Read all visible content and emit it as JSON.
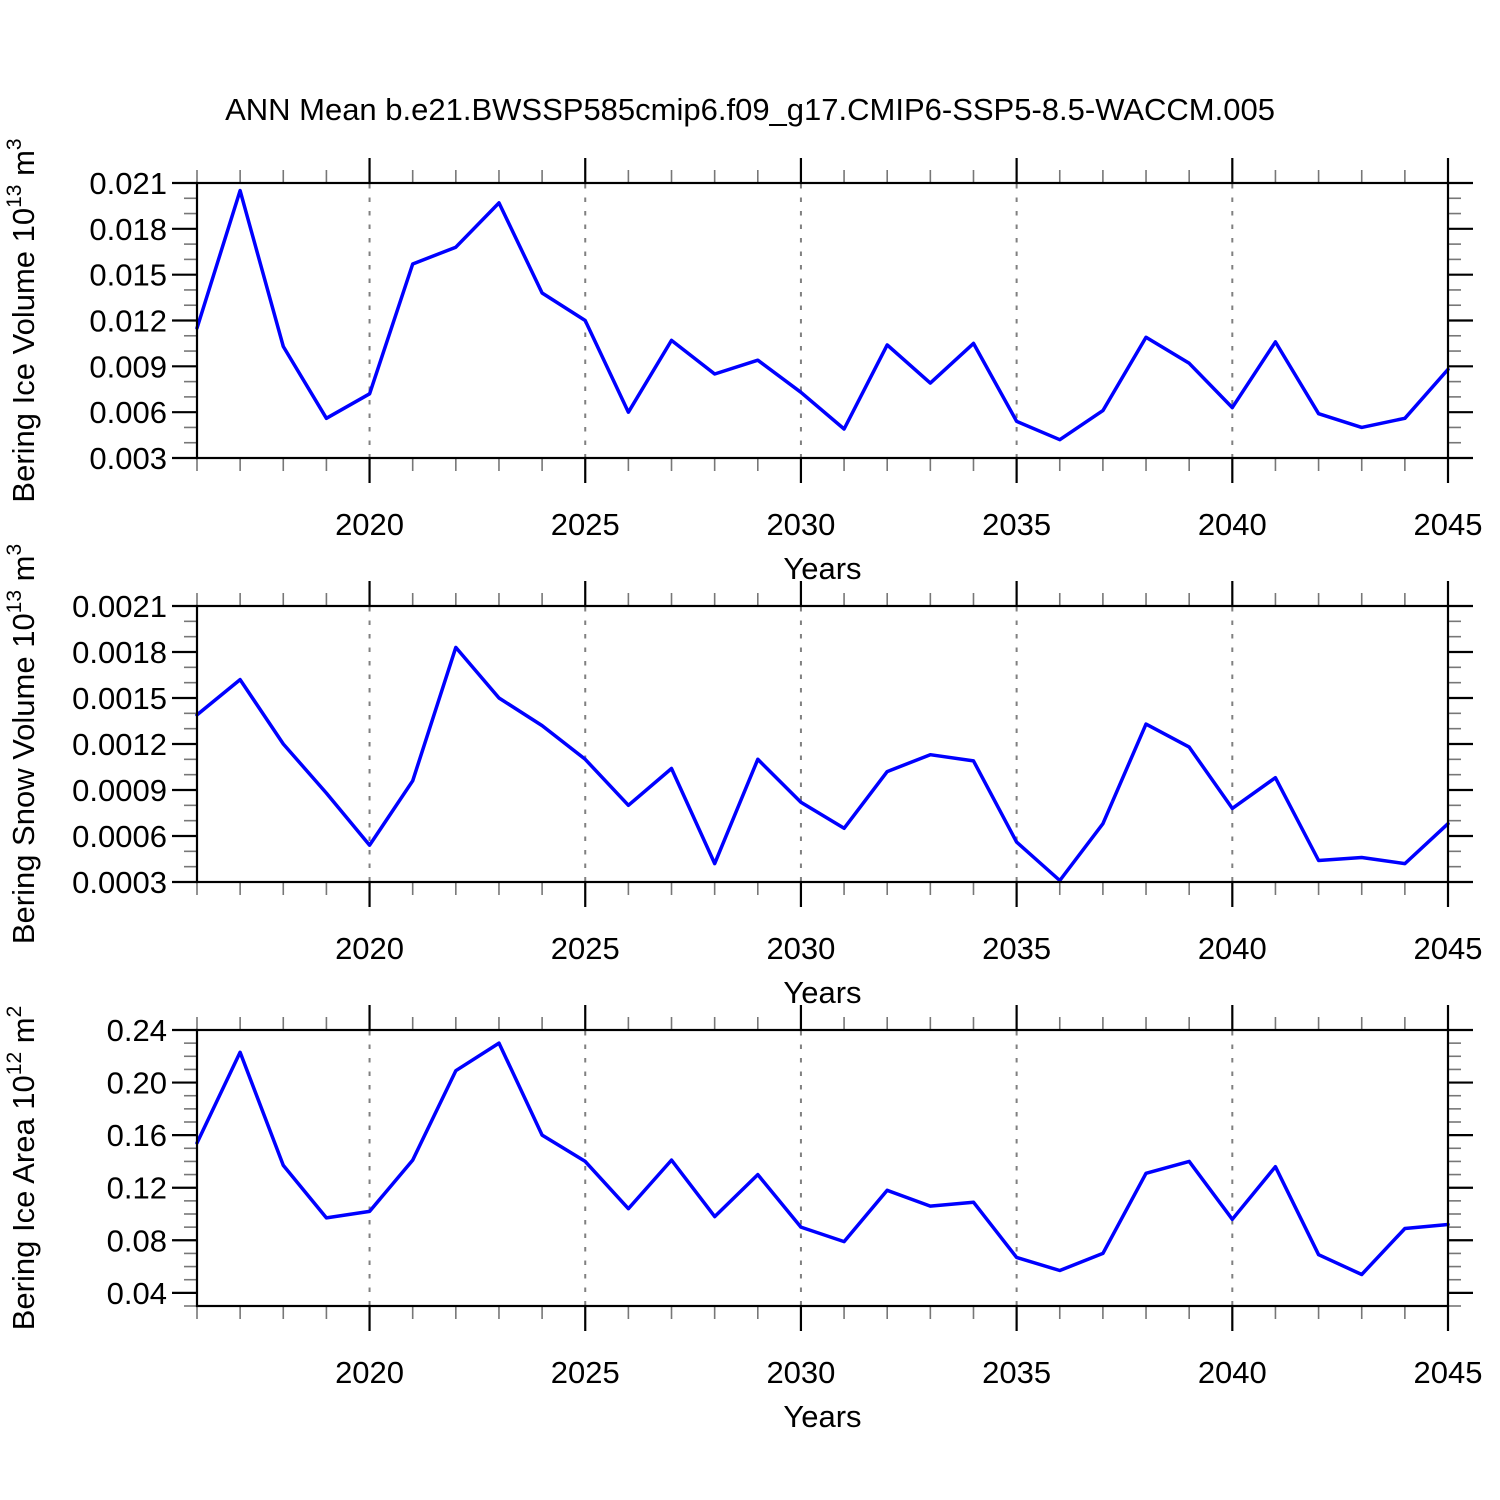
{
  "title": "ANN Mean b.e21.BWSSP585cmip6.f09_g17.CMIP6-SSP5-8.5-WACCM.005",
  "colors": {
    "line": "#0000ff",
    "grid": "#808080",
    "axis": "#000000",
    "minor_tick": "#777777",
    "background": "#ffffff"
  },
  "chart_data": [
    {
      "type": "line",
      "ylabel": {
        "prefix": "Bering Ice Volume 10",
        "exp": "13",
        "unit": " m",
        "unit_exp": "3"
      },
      "xlabel": "Years",
      "xlim": [
        2016,
        2045
      ],
      "ylim": [
        0.003,
        0.021
      ],
      "ytick_values": [
        0.021,
        0.018,
        0.015,
        0.012,
        0.009,
        0.006,
        0.003
      ],
      "ytick_labels": [
        "0.021",
        "0.018",
        "0.015",
        "0.012",
        "0.009",
        "0.006",
        "0.003"
      ],
      "yminor_step": 0.001,
      "xtick_values": [
        2020,
        2025,
        2030,
        2035,
        2040,
        2045
      ],
      "xtick_labels": [
        "2020",
        "2025",
        "2030",
        "2035",
        "2040",
        "2045"
      ],
      "grid_years": [
        2020,
        2025,
        2030,
        2035,
        2040
      ],
      "x": [
        2016,
        2017,
        2018,
        2019,
        2020,
        2021,
        2022,
        2023,
        2024,
        2025,
        2026,
        2027,
        2028,
        2029,
        2030,
        2031,
        2032,
        2033,
        2034,
        2035,
        2036,
        2037,
        2038,
        2039,
        2040,
        2041,
        2042,
        2043,
        2044,
        2045
      ],
      "values": [
        0.0115,
        0.0205,
        0.0103,
        0.0056,
        0.0072,
        0.0157,
        0.0168,
        0.0197,
        0.0138,
        0.012,
        0.006,
        0.0107,
        0.0085,
        0.0094,
        0.0073,
        0.0049,
        0.0104,
        0.0079,
        0.0105,
        0.0054,
        0.0042,
        0.0061,
        0.0109,
        0.0092,
        0.0063,
        0.0106,
        0.0059,
        0.005,
        0.0056,
        0.0088
      ]
    },
    {
      "type": "line",
      "ylabel": {
        "prefix": "Bering Snow Volume 10",
        "exp": "13",
        "unit": " m",
        "unit_exp": "3"
      },
      "xlabel": "Years",
      "xlim": [
        2016,
        2045
      ],
      "ylim": [
        0.0003,
        0.0021
      ],
      "ytick_values": [
        0.0021,
        0.0018,
        0.0015,
        0.0012,
        0.0009,
        0.0006,
        0.0003
      ],
      "ytick_labels": [
        "0.0021",
        "0.0018",
        "0.0015",
        "0.0012",
        "0.0009",
        "0.0006",
        "0.0003"
      ],
      "yminor_step": 0.0001,
      "xtick_values": [
        2020,
        2025,
        2030,
        2035,
        2040,
        2045
      ],
      "xtick_labels": [
        "2020",
        "2025",
        "2030",
        "2035",
        "2040",
        "2045"
      ],
      "grid_years": [
        2020,
        2025,
        2030,
        2035,
        2040
      ],
      "x": [
        2016,
        2017,
        2018,
        2019,
        2020,
        2021,
        2022,
        2023,
        2024,
        2025,
        2026,
        2027,
        2028,
        2029,
        2030,
        2031,
        2032,
        2033,
        2034,
        2035,
        2036,
        2037,
        2038,
        2039,
        2040,
        2041,
        2042,
        2043,
        2044,
        2045
      ],
      "values": [
        0.00139,
        0.00162,
        0.0012,
        0.00088,
        0.00054,
        0.00096,
        0.00183,
        0.0015,
        0.00132,
        0.0011,
        0.0008,
        0.00104,
        0.00042,
        0.0011,
        0.00082,
        0.00065,
        0.00102,
        0.00113,
        0.00109,
        0.00056,
        0.00031,
        0.00068,
        0.00133,
        0.00118,
        0.00078,
        0.00098,
        0.00044,
        0.00046,
        0.00042,
        0.00068
      ]
    },
    {
      "type": "line",
      "ylabel": {
        "prefix": "Bering Ice Area 10",
        "exp": "12",
        "unit": " m",
        "unit_exp": "2"
      },
      "xlabel": "Years",
      "xlim": [
        2016,
        2045
      ],
      "ylim": [
        0.03,
        0.24
      ],
      "ytick_values": [
        0.24,
        0.2,
        0.16,
        0.12,
        0.08,
        0.04
      ],
      "ytick_labels": [
        "0.24",
        "0.20",
        "0.16",
        "0.12",
        "0.08",
        "0.04"
      ],
      "yminor_step": 0.01,
      "xtick_values": [
        2020,
        2025,
        2030,
        2035,
        2040,
        2045
      ],
      "xtick_labels": [
        "2020",
        "2025",
        "2030",
        "2035",
        "2040",
        "2045"
      ],
      "grid_years": [
        2020,
        2025,
        2030,
        2035,
        2040
      ],
      "x": [
        2016,
        2017,
        2018,
        2019,
        2020,
        2021,
        2022,
        2023,
        2024,
        2025,
        2026,
        2027,
        2028,
        2029,
        2030,
        2031,
        2032,
        2033,
        2034,
        2035,
        2036,
        2037,
        2038,
        2039,
        2040,
        2041,
        2042,
        2043,
        2044,
        2045
      ],
      "values": [
        0.154,
        0.223,
        0.137,
        0.097,
        0.102,
        0.141,
        0.209,
        0.23,
        0.16,
        0.14,
        0.104,
        0.141,
        0.098,
        0.13,
        0.09,
        0.079,
        0.118,
        0.106,
        0.109,
        0.067,
        0.057,
        0.07,
        0.131,
        0.14,
        0.096,
        0.136,
        0.069,
        0.054,
        0.089,
        0.092
      ]
    }
  ]
}
